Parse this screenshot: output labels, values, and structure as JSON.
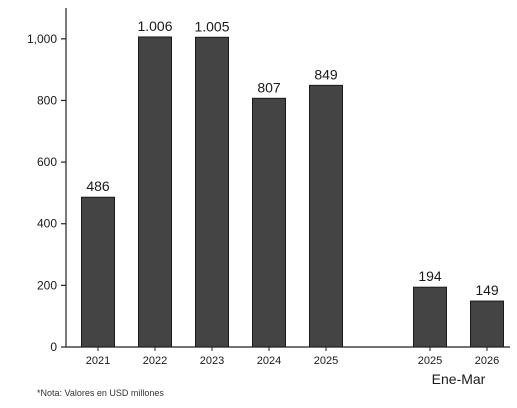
{
  "chart_data": {
    "type": "bar",
    "categories": [
      "2021",
      "2022",
      "2023",
      "2024",
      "2025",
      "2025",
      "2026"
    ],
    "values": [
      486,
      1006,
      1005,
      807,
      849,
      194,
      149
    ],
    "value_labels": [
      "486",
      "1.006",
      "1.005",
      "807",
      "849",
      "194",
      "149"
    ],
    "groups": [
      {
        "label": "",
        "indices": [
          0,
          1,
          2,
          3,
          4
        ]
      },
      {
        "label": "Ene-Mar",
        "indices": [
          5,
          6
        ]
      }
    ],
    "ylim": [
      0,
      1100
    ],
    "yticks": [
      0,
      200,
      400,
      600,
      800,
      1000
    ],
    "ytick_labels": [
      "0",
      "200",
      "400",
      "600",
      "800",
      "1,000"
    ],
    "grid": false,
    "bar_color": "#444444",
    "title": "",
    "xlabel": "",
    "ylabel": ""
  },
  "note": "*Nota: Valores en USD millones"
}
